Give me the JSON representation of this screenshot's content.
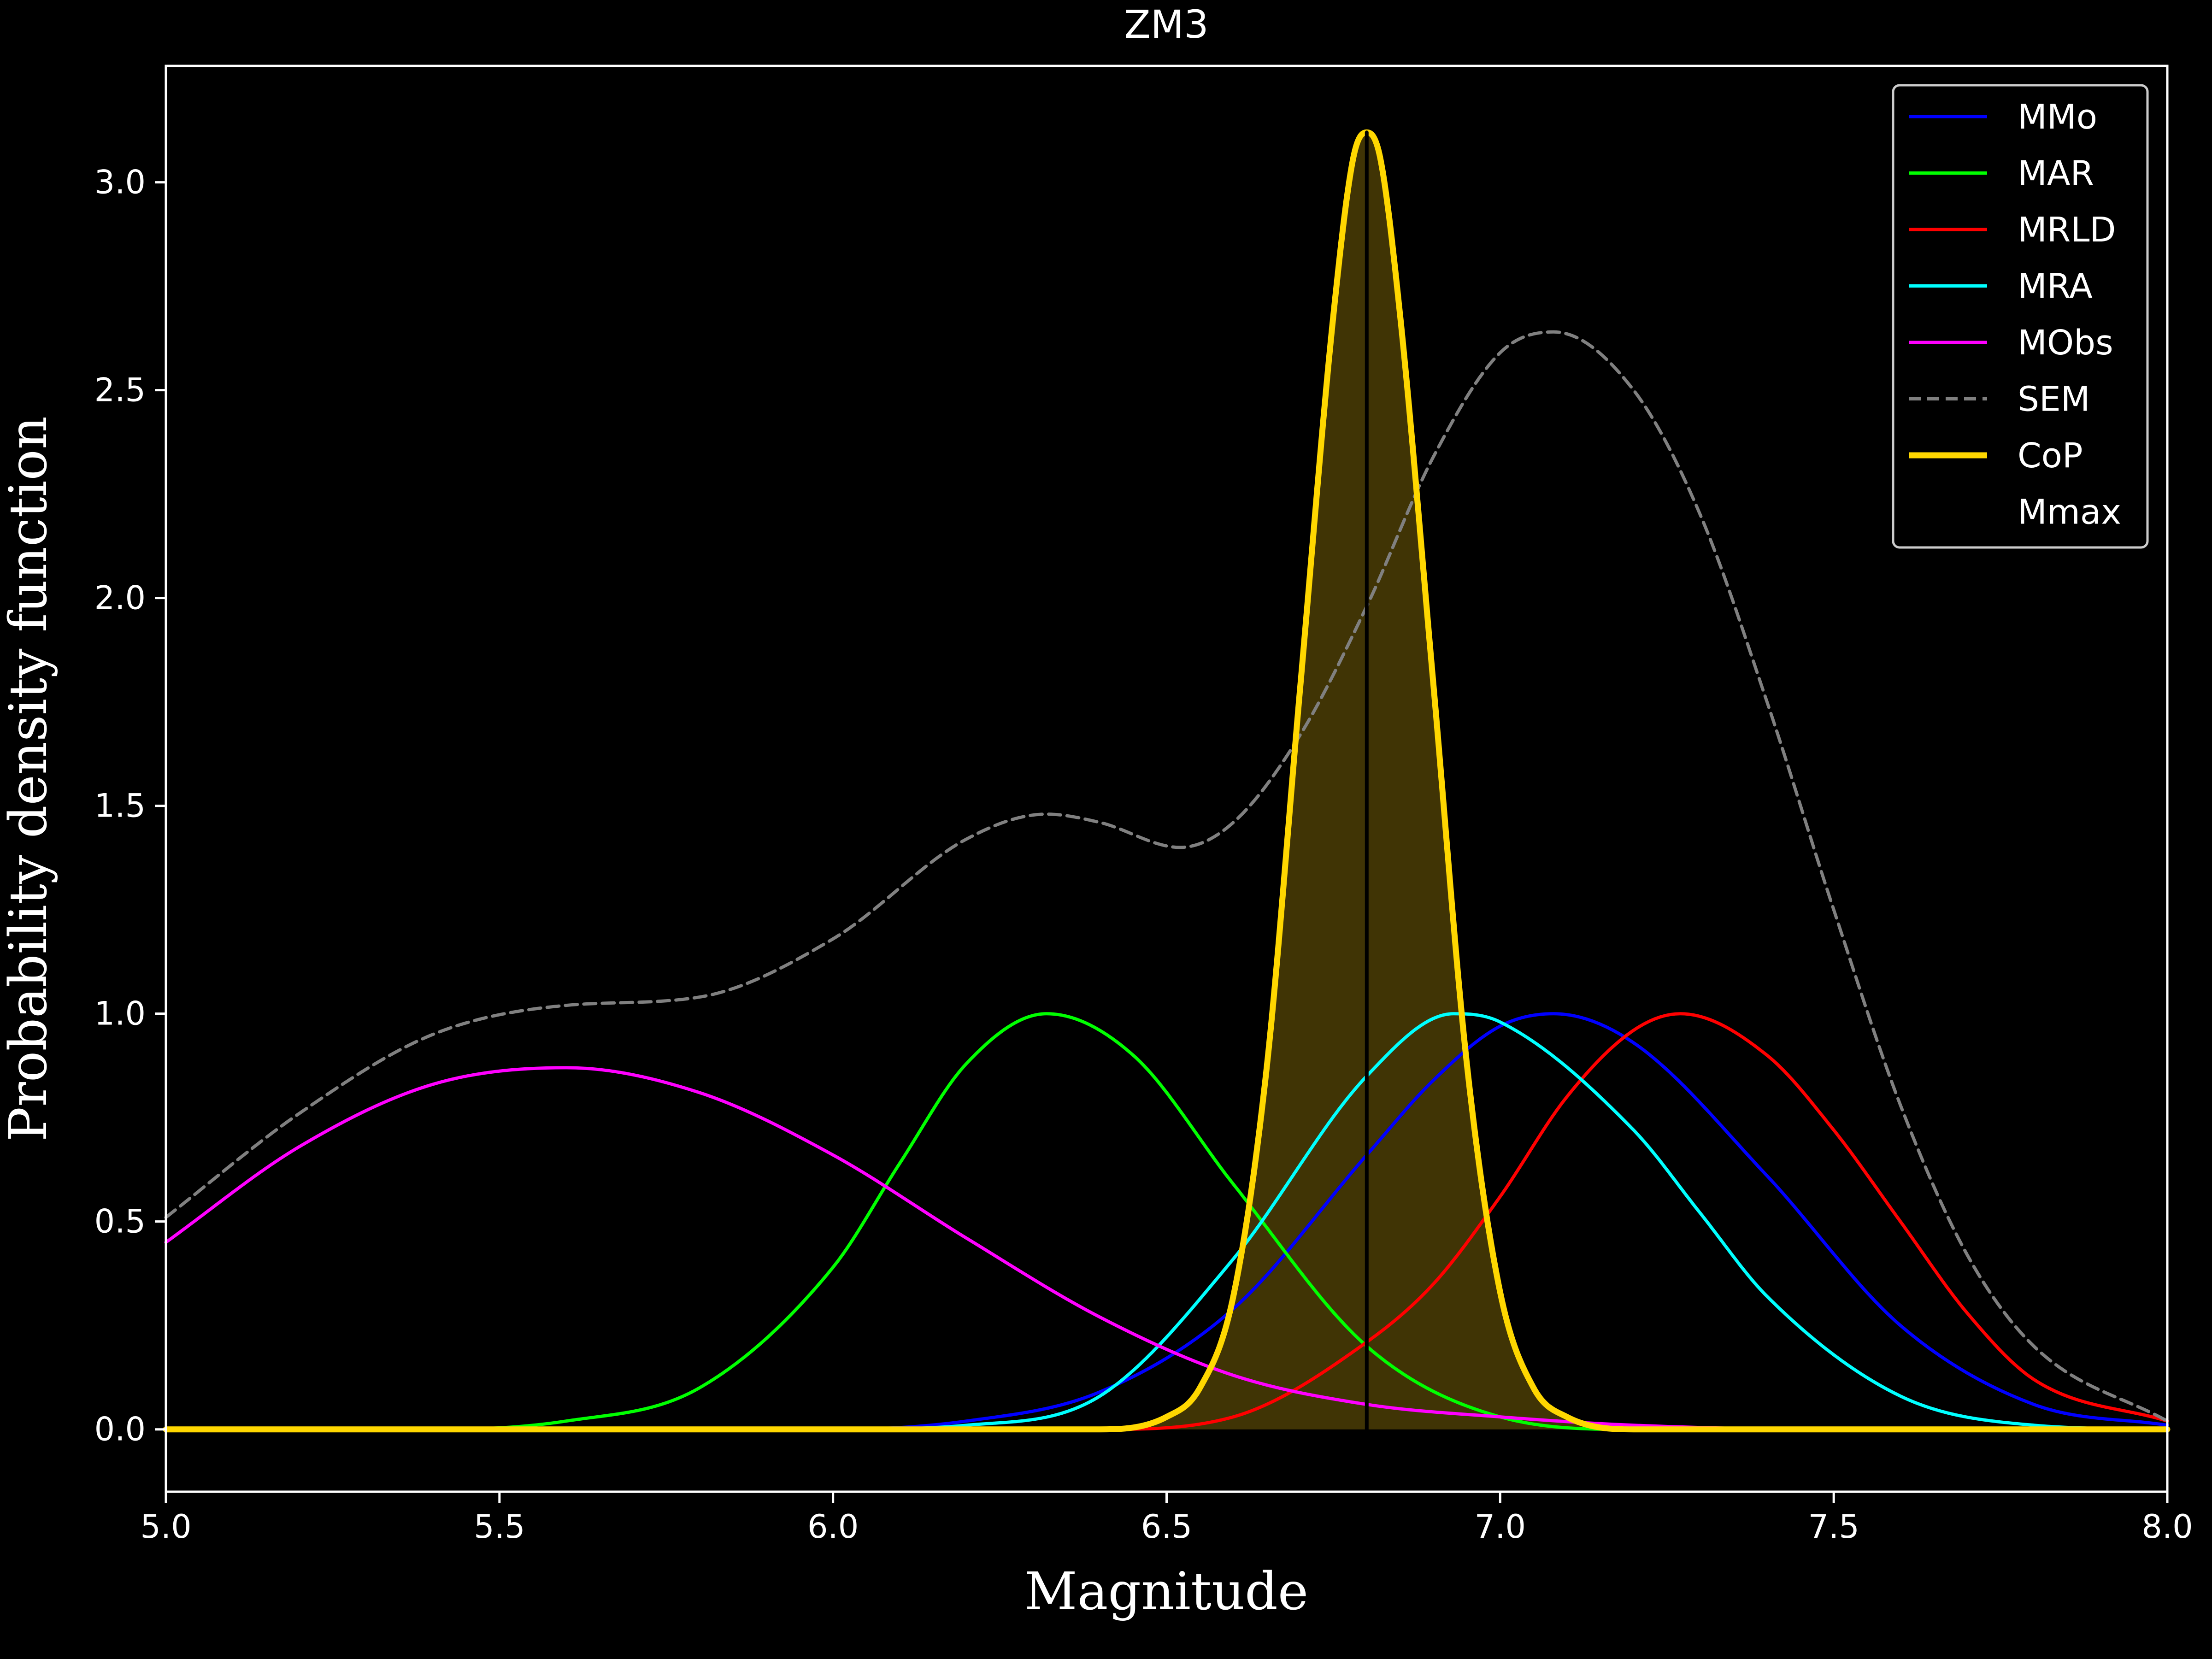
{
  "chart_data": {
    "type": "line",
    "title": "ZM3",
    "xlabel": "Magnitude",
    "ylabel": "Probability density function",
    "xlim": [
      5.0,
      8.0
    ],
    "ylim": [
      -0.15,
      3.28
    ],
    "xticks": [
      "5.0",
      "5.5",
      "6.0",
      "6.5",
      "7.0",
      "7.5",
      "8.0"
    ],
    "yticks": [
      "0.0",
      "0.5",
      "1.0",
      "1.5",
      "2.0",
      "2.5",
      "3.0"
    ],
    "grid": false,
    "legend_position": "top-right",
    "background": "#000000",
    "foreground": "#ffffff",
    "series": [
      {
        "name": "MMo",
        "color": "#0000ff",
        "style": "solid",
        "x": [
          5.0,
          5.5,
          6.0,
          6.2,
          6.4,
          6.6,
          6.8,
          6.9,
          7.0,
          7.08,
          7.2,
          7.4,
          7.6,
          7.8,
          8.0
        ],
        "y": [
          0.0,
          0.0,
          0.0,
          0.02,
          0.09,
          0.29,
          0.66,
          0.84,
          0.97,
          1.0,
          0.93,
          0.61,
          0.25,
          0.06,
          0.01
        ]
      },
      {
        "name": "MAR",
        "color": "#00ff00",
        "style": "solid",
        "x": [
          5.0,
          5.4,
          5.6,
          5.8,
          6.0,
          6.1,
          6.2,
          6.32,
          6.45,
          6.6,
          6.8,
          7.0,
          7.2,
          7.5,
          8.0
        ],
        "y": [
          0.0,
          0.0,
          0.02,
          0.1,
          0.39,
          0.64,
          0.88,
          1.0,
          0.9,
          0.59,
          0.2,
          0.03,
          0.0,
          0.0,
          0.0
        ]
      },
      {
        "name": "MRLD",
        "color": "#ff0000",
        "style": "solid",
        "x": [
          5.0,
          6.0,
          6.4,
          6.6,
          6.8,
          6.9,
          7.0,
          7.1,
          7.2,
          7.27,
          7.4,
          7.5,
          7.6,
          7.7,
          7.8,
          8.0
        ],
        "y": [
          0.0,
          0.0,
          0.0,
          0.03,
          0.21,
          0.35,
          0.56,
          0.8,
          0.96,
          1.0,
          0.9,
          0.72,
          0.5,
          0.28,
          0.12,
          0.02
        ]
      },
      {
        "name": "MRA",
        "color": "#00ffff",
        "style": "solid",
        "x": [
          5.0,
          6.0,
          6.2,
          6.4,
          6.6,
          6.8,
          6.93,
          7.0,
          7.2,
          7.3,
          7.4,
          7.6,
          7.8,
          8.0
        ],
        "y": [
          0.0,
          0.0,
          0.01,
          0.08,
          0.41,
          0.85,
          1.0,
          0.98,
          0.72,
          0.52,
          0.32,
          0.08,
          0.01,
          0.0
        ]
      },
      {
        "name": "MObs",
        "color": "#ff00ff",
        "style": "solid",
        "x": [
          5.0,
          5.2,
          5.4,
          5.6,
          5.8,
          6.0,
          6.2,
          6.4,
          6.6,
          6.8,
          7.0,
          7.2,
          7.5,
          8.0
        ],
        "y": [
          0.45,
          0.68,
          0.83,
          0.87,
          0.81,
          0.66,
          0.46,
          0.27,
          0.13,
          0.06,
          0.03,
          0.01,
          0.0,
          0.0
        ]
      },
      {
        "name": "SEM",
        "color": "#808080",
        "style": "dashed",
        "x": [
          5.0,
          5.2,
          5.4,
          5.6,
          5.8,
          6.0,
          6.2,
          6.32,
          6.4,
          6.52,
          6.6,
          6.7,
          6.8,
          6.9,
          7.0,
          7.08,
          7.2,
          7.3,
          7.4,
          7.5,
          7.6,
          7.7,
          7.8,
          8.0
        ],
        "y": [
          0.51,
          0.76,
          0.95,
          1.02,
          1.04,
          1.18,
          1.42,
          1.48,
          1.46,
          1.4,
          1.46,
          1.67,
          1.98,
          2.34,
          2.59,
          2.64,
          2.5,
          2.2,
          1.75,
          1.25,
          0.78,
          0.42,
          0.2,
          0.02
        ]
      },
      {
        "name": "CoP",
        "color": "#ffd700",
        "style": "solid-thick",
        "fill": "#403405",
        "x": [
          5.0,
          6.0,
          6.4,
          6.5,
          6.55,
          6.6,
          6.65,
          6.7,
          6.75,
          6.78,
          6.8,
          6.82,
          6.85,
          6.9,
          6.95,
          7.0,
          7.05,
          7.1,
          7.2,
          7.5,
          8.0
        ],
        "y": [
          0.0,
          0.0,
          0.0,
          0.03,
          0.1,
          0.32,
          0.87,
          1.78,
          2.68,
          3.06,
          3.12,
          3.06,
          2.68,
          1.79,
          0.88,
          0.33,
          0.1,
          0.03,
          0.0,
          0.0,
          0.0
        ]
      },
      {
        "name": "Mmax",
        "color": "#000000",
        "style": "vline",
        "x": [
          6.8,
          6.8
        ],
        "y": [
          0.0,
          3.12
        ]
      }
    ]
  }
}
